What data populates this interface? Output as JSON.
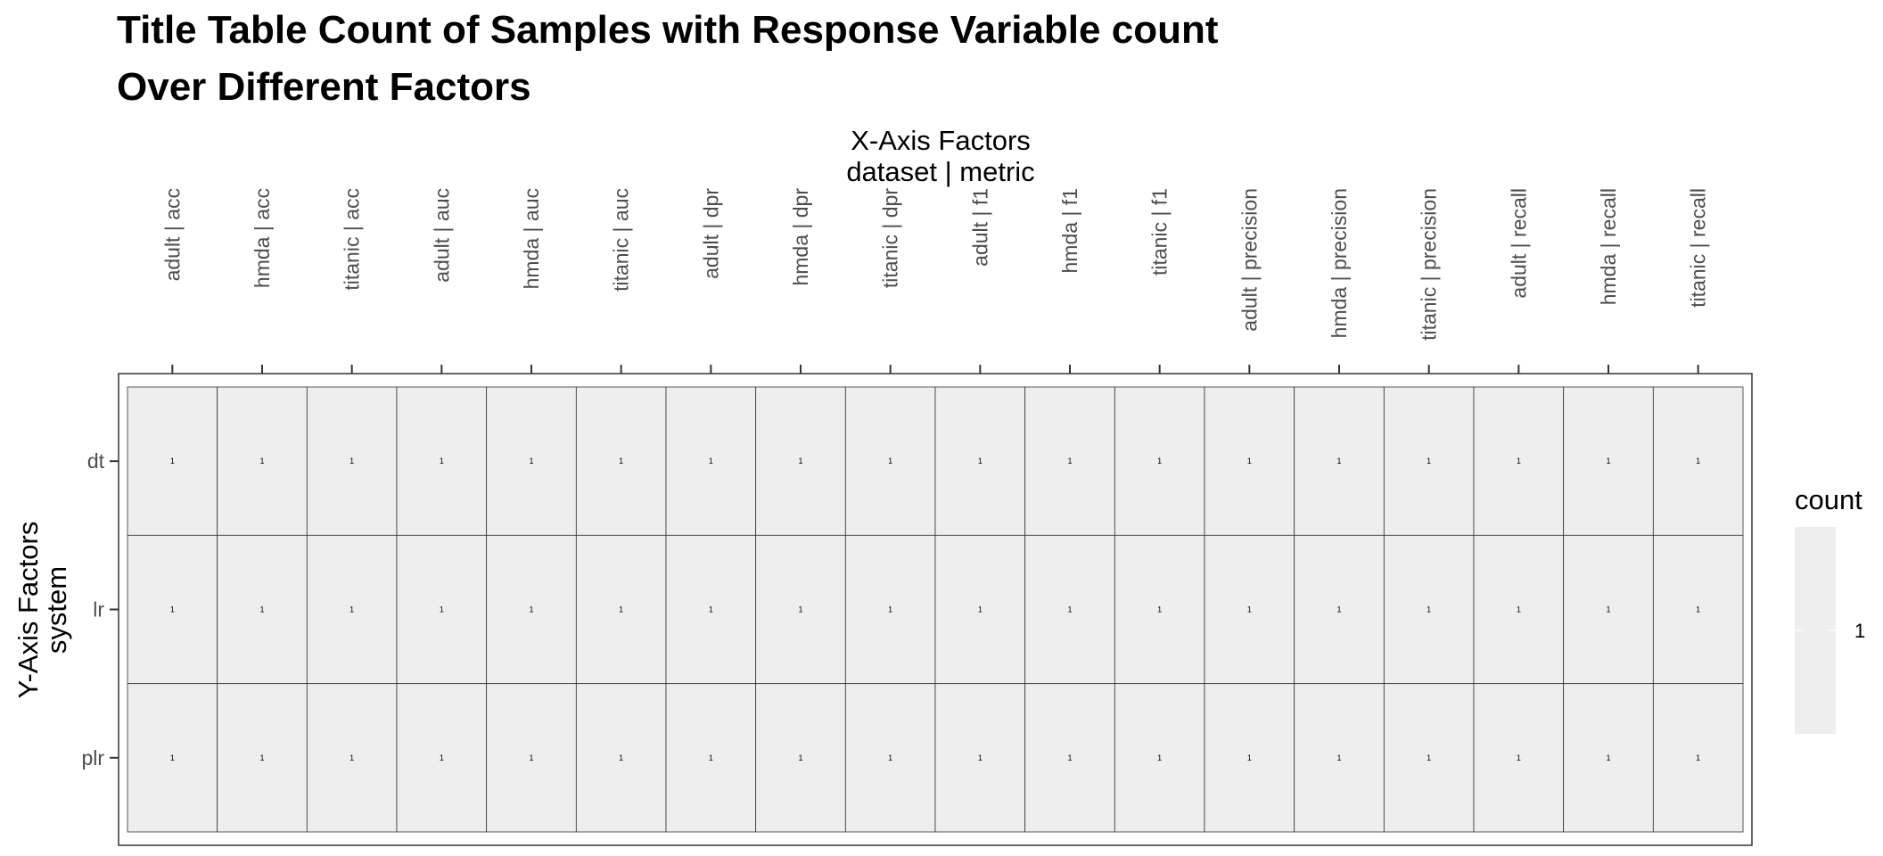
{
  "chart_data": {
    "type": "heatmap",
    "title": [
      "Title Table Count of Samples with Response Variable count",
      "Over Different Factors"
    ],
    "xlabel": [
      "X-Axis Factors",
      "dataset | metric"
    ],
    "ylabel": [
      "Y-Axis Factors",
      "system"
    ],
    "x_categories": [
      "adult | acc",
      "hmda | acc",
      "titanic | acc",
      "adult | auc",
      "hmda | auc",
      "titanic | auc",
      "adult | dpr",
      "hmda | dpr",
      "titanic | dpr",
      "adult | f1",
      "hmda | f1",
      "titanic | f1",
      "adult | precision",
      "hmda | precision",
      "titanic | precision",
      "adult | recall",
      "hmda | recall",
      "titanic | recall"
    ],
    "y_categories": [
      "dt",
      "lr",
      "plr"
    ],
    "values": [
      [
        1,
        1,
        1,
        1,
        1,
        1,
        1,
        1,
        1,
        1,
        1,
        1,
        1,
        1,
        1,
        1,
        1,
        1
      ],
      [
        1,
        1,
        1,
        1,
        1,
        1,
        1,
        1,
        1,
        1,
        1,
        1,
        1,
        1,
        1,
        1,
        1,
        1
      ],
      [
        1,
        1,
        1,
        1,
        1,
        1,
        1,
        1,
        1,
        1,
        1,
        1,
        1,
        1,
        1,
        1,
        1,
        1
      ]
    ],
    "x_axis_position": "top",
    "grid": false,
    "legend": {
      "title": "count",
      "position": "right",
      "ticks": [
        "1"
      ]
    },
    "colors": {
      "tile_fill": "#eeeeee",
      "tile_border": "#333333",
      "panel_border": "#333333",
      "text": "#000000",
      "tick_text": "#4d4d4d",
      "legend_bar": "#eeeeee"
    }
  }
}
